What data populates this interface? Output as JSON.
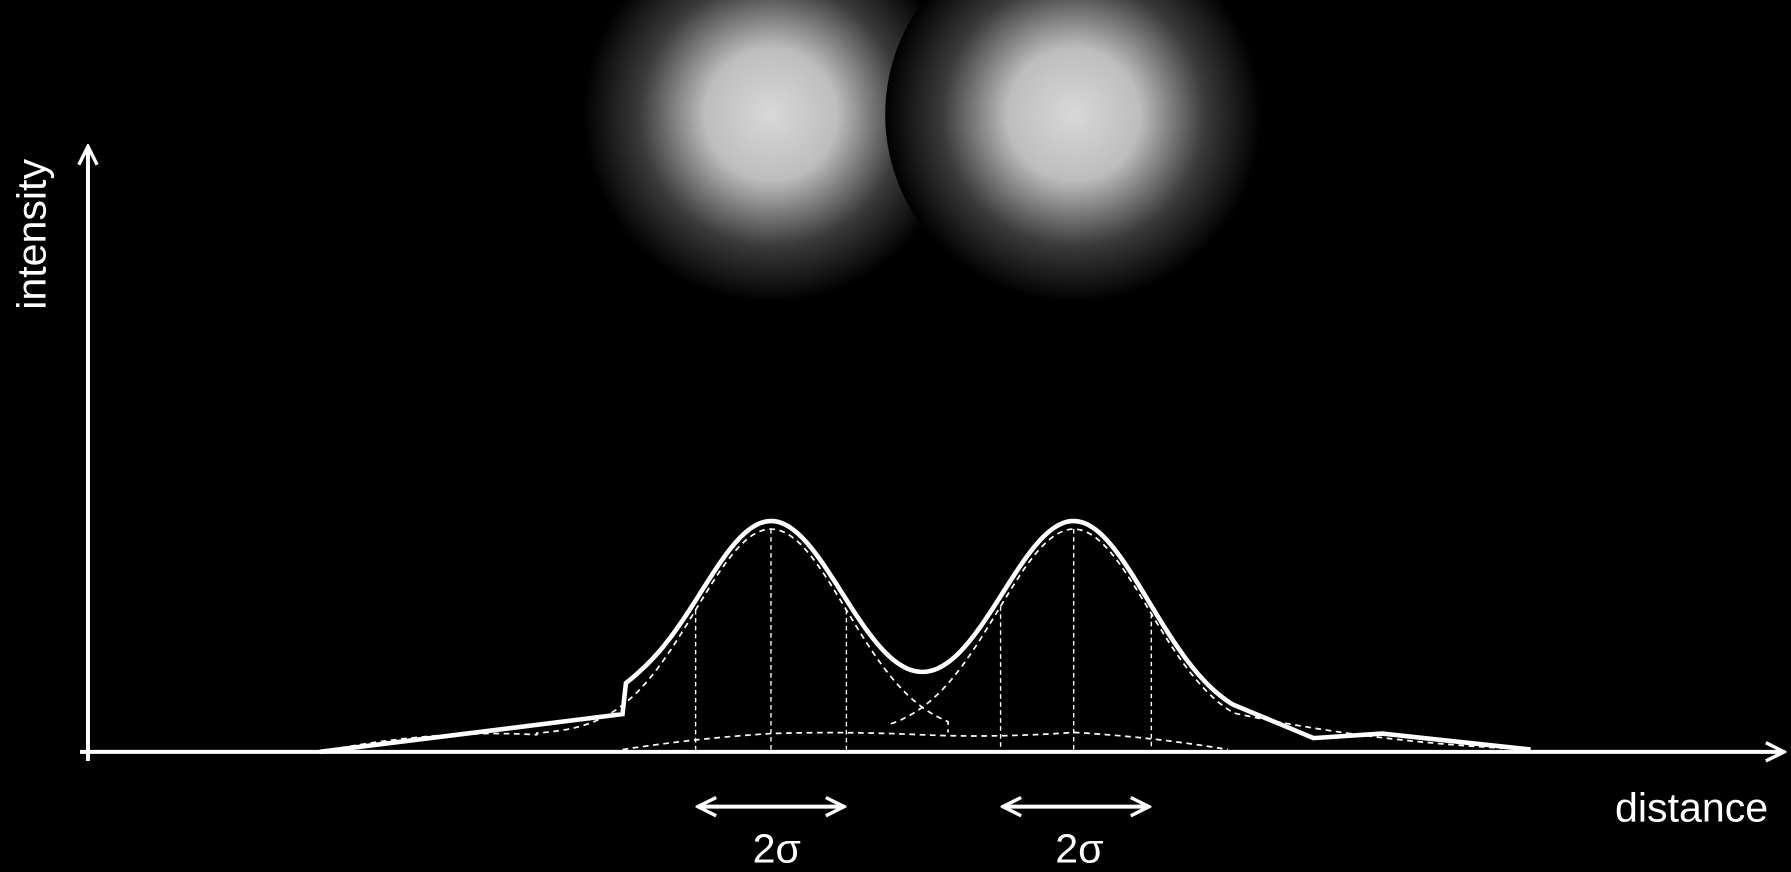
{
  "axes": {
    "y_label": "intensity",
    "x_label": "distance"
  },
  "annotations": [
    {
      "label": "2σ"
    },
    {
      "label": "2σ"
    }
  ]
}
